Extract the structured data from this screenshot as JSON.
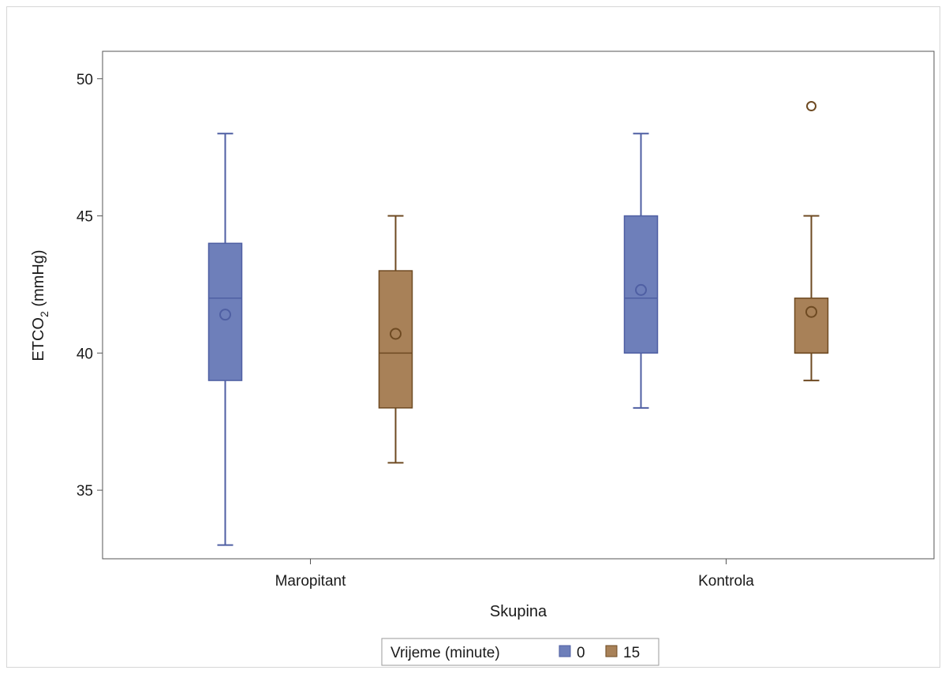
{
  "chart_data": {
    "type": "box",
    "title": "",
    "xlabel": "Skupina",
    "ylabel_main": "ETCO",
    "ylabel_sub": "2",
    "ylabel_unit": " (mmHg)",
    "ylim": [
      32.5,
      51
    ],
    "yticks": [
      35,
      40,
      45,
      50
    ],
    "categories": [
      "Maropitant",
      "Kontrola"
    ],
    "legend": {
      "title": "Vrijeme (minute)",
      "placement": "bottom-center",
      "entries": [
        "0",
        "15"
      ]
    },
    "colors": {
      "0": {
        "fill": "#6e7fba",
        "stroke": "#4f5fa3"
      },
      "15": {
        "fill": "#a88158",
        "stroke": "#6e4a22"
      }
    },
    "series": [
      {
        "name": "0",
        "boxes": [
          {
            "category": "Maropitant",
            "min": 33,
            "q1": 39,
            "median": 42,
            "q3": 44,
            "max": 48,
            "mean": 41.4,
            "outliers": []
          },
          {
            "category": "Kontrola",
            "min": 38,
            "q1": 40,
            "median": 42,
            "q3": 45,
            "max": 48,
            "mean": 42.3,
            "outliers": []
          }
        ]
      },
      {
        "name": "15",
        "boxes": [
          {
            "category": "Maropitant",
            "min": 36,
            "q1": 38,
            "median": 40,
            "q3": 43,
            "max": 45,
            "mean": 40.7,
            "outliers": []
          },
          {
            "category": "Kontrola",
            "min": 39,
            "q1": 40,
            "median": 40,
            "q3": 42,
            "max": 45,
            "mean": 41.5,
            "outliers": [
              49
            ]
          }
        ]
      }
    ]
  }
}
